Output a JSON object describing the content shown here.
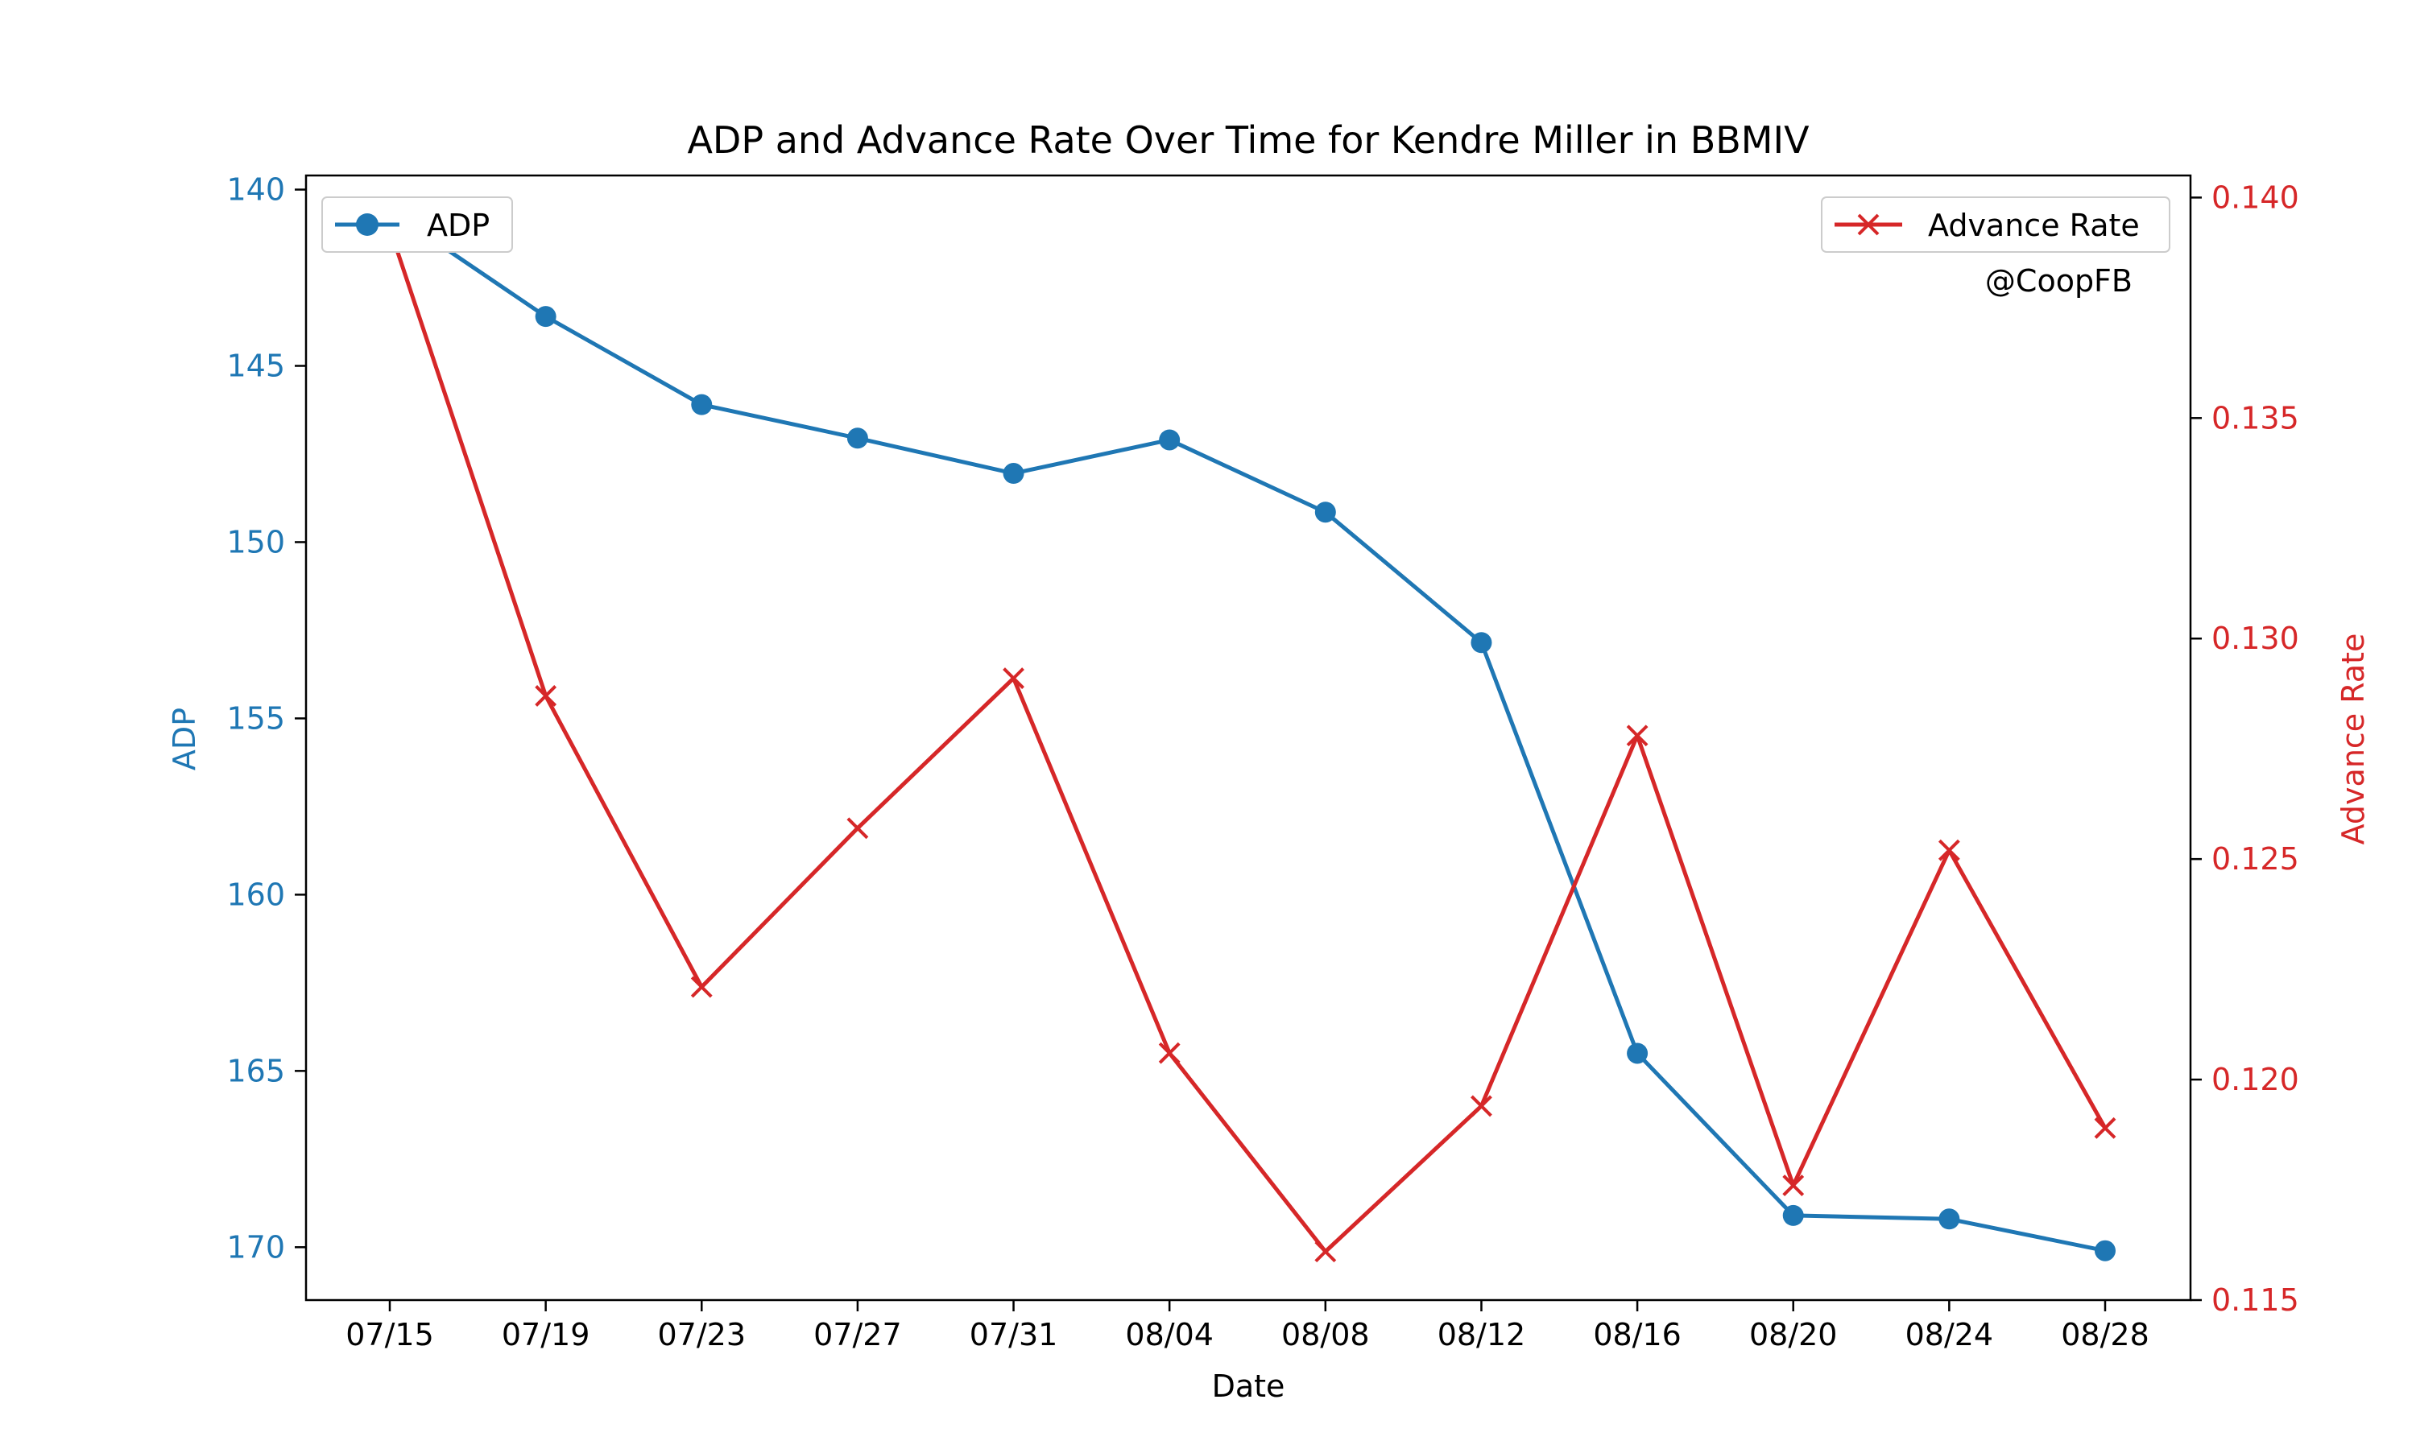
{
  "chart_data": {
    "type": "line",
    "title": "ADP and Advance Rate Over Time for Kendre Miller in BBMIV",
    "xlabel": "Date",
    "x": [
      "07/15",
      "07/19",
      "07/23",
      "07/27",
      "07/31",
      "08/04",
      "08/08",
      "08/12",
      "08/16",
      "08/20",
      "08/24",
      "08/28"
    ],
    "annotation": "@CoopFB",
    "y_left": {
      "label": "ADP",
      "color": "#1f77b4",
      "inverted": true,
      "lim": [
        171.5,
        139.6
      ],
      "ticks": [
        140,
        145,
        150,
        155,
        160,
        165,
        170
      ]
    },
    "y_right": {
      "label": "Advance Rate",
      "color": "#d62728",
      "lim": [
        0.115,
        0.1405
      ],
      "ticks": [
        "0.115",
        "0.120",
        "0.125",
        "0.130",
        "0.135",
        "0.140"
      ]
    },
    "series": [
      {
        "name": "ADP",
        "axis": "left",
        "marker": "circle",
        "color": "#1f77b4",
        "values": [
          140.6,
          143.6,
          146.1,
          147.05,
          148.05,
          147.1,
          149.15,
          152.85,
          164.5,
          169.1,
          169.2,
          170.1
        ]
      },
      {
        "name": "Advance Rate",
        "axis": "right",
        "marker": "x",
        "color": "#d62728",
        "values": [
          0.1393,
          0.1287,
          0.1221,
          0.1257,
          0.1291,
          0.1206,
          0.1161,
          0.1194,
          0.1278,
          0.1176,
          0.1252,
          0.1189
        ]
      }
    ],
    "legend_left": "top-left",
    "legend_right": "top-right",
    "grid": false
  }
}
